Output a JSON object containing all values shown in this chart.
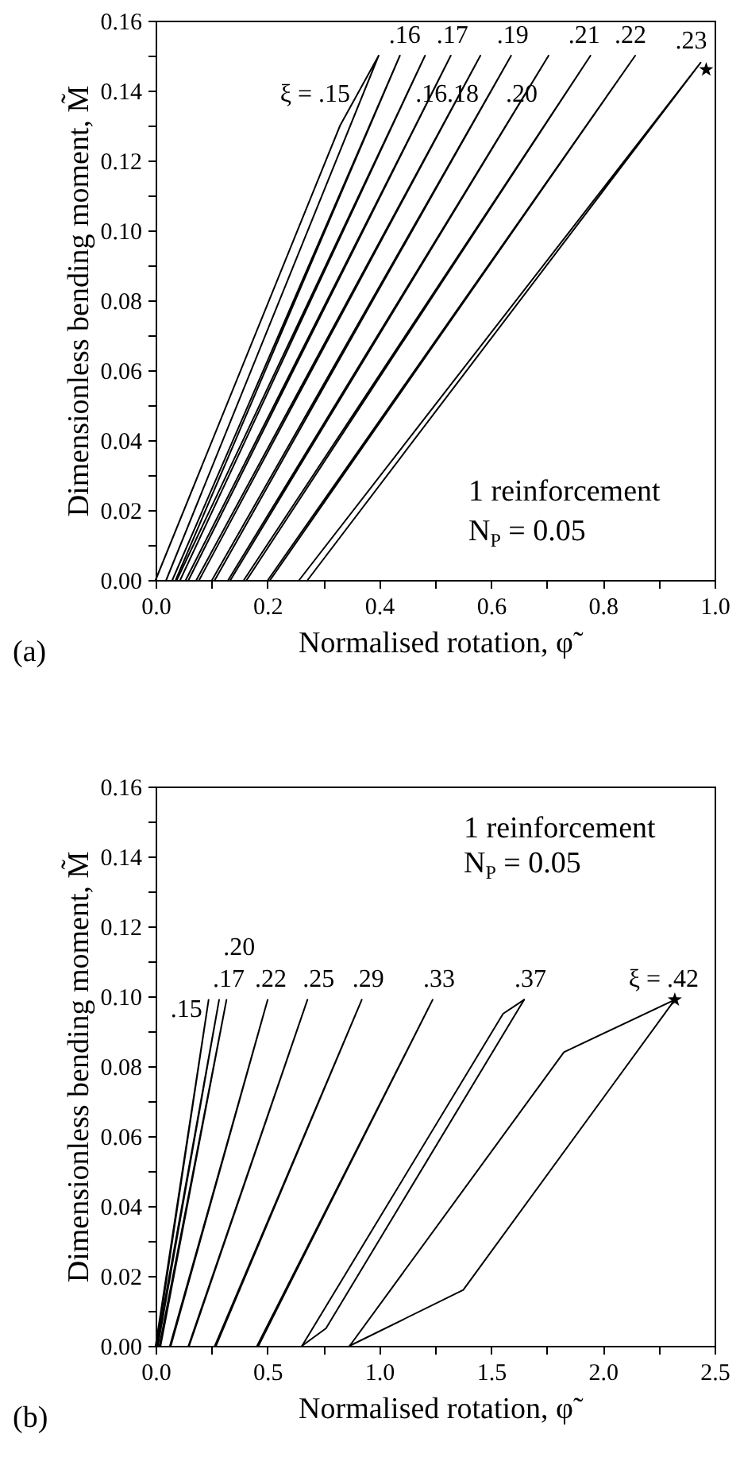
{
  "chart_data": [
    {
      "type": "line",
      "xlabel": "Normalised rotation, φ̃",
      "ylabel": "Dimensionless bending moment, M̃",
      "xlim": [
        0,
        1
      ],
      "ylim": [
        0,
        0.16
      ],
      "grid": false,
      "xticks": [
        {
          "value": 0,
          "label": "0.0"
        },
        {
          "value": 0.1,
          "label": null
        },
        {
          "value": 0.2,
          "label": "0.2"
        },
        {
          "value": 0.3,
          "label": null
        },
        {
          "value": 0.4,
          "label": "0.4"
        },
        {
          "value": 0.5,
          "label": null
        },
        {
          "value": 0.6,
          "label": "0.6"
        },
        {
          "value": 0.7,
          "label": null
        },
        {
          "value": 0.8,
          "label": "0.8"
        },
        {
          "value": 0.9,
          "label": null
        },
        {
          "value": 1,
          "label": "1.0"
        }
      ],
      "yticks": [
        {
          "value": 0,
          "label": "0.00"
        },
        {
          "value": 0.01,
          "label": null
        },
        {
          "value": 0.02,
          "label": "0.02"
        },
        {
          "value": 0.03,
          "label": null
        },
        {
          "value": 0.04,
          "label": "0.04"
        },
        {
          "value": 0.05,
          "label": null
        },
        {
          "value": 0.06,
          "label": "0.06"
        },
        {
          "value": 0.07,
          "label": null
        },
        {
          "value": 0.08,
          "label": "0.08"
        },
        {
          "value": 0.09,
          "label": null
        },
        {
          "value": 0.1,
          "label": "0.10"
        },
        {
          "value": 0.11,
          "label": null
        },
        {
          "value": 0.12,
          "label": "0.12"
        },
        {
          "value": 0.13,
          "label": null
        },
        {
          "value": 0.14,
          "label": "0.14"
        },
        {
          "value": 0.15,
          "label": null
        },
        {
          "value": 0.16,
          "label": "0.16"
        }
      ],
      "series": [
        {
          "name": "ξ = .15",
          "color": "#000000",
          "x": [
            0,
            0.33,
            0.399,
            0.019
          ],
          "values": [
            0,
            0.13,
            0.15,
            0
          ]
        },
        {
          "name": ".16",
          "color": "#000000",
          "x": [
            0.03,
            0.437,
            0.036
          ],
          "values": [
            0,
            0.15,
            0
          ]
        },
        {
          "name": ".16",
          "color": "#000000",
          "x": [
            0.038,
            0.482,
            0.044
          ],
          "values": [
            0,
            0.15,
            0
          ]
        },
        {
          "name": ".17",
          "color": "#000000",
          "x": [
            0.054,
            0.528,
            0.059
          ],
          "values": [
            0,
            0.15,
            0
          ]
        },
        {
          "name": ".18",
          "color": "#000000",
          "x": [
            0.073,
            0.581,
            0.078
          ],
          "values": [
            0,
            0.15,
            0
          ]
        },
        {
          "name": ".19",
          "color": "#000000",
          "x": [
            0.101,
            0.636,
            0.106
          ],
          "values": [
            0,
            0.15,
            0
          ]
        },
        {
          "name": ".20",
          "color": "#000000",
          "x": [
            0.13,
            0.703,
            0.134
          ],
          "values": [
            0,
            0.15,
            0
          ]
        },
        {
          "name": ".21",
          "color": "#000000",
          "x": [
            0.158,
            0.778,
            0.163
          ],
          "values": [
            0,
            0.15,
            0
          ]
        },
        {
          "name": ".22",
          "color": "#000000",
          "x": [
            0.201,
            0.858,
            0.205
          ],
          "values": [
            0,
            0.15,
            0
          ]
        },
        {
          "name": ".23",
          "color": "#000000",
          "x": [
            0.257,
            0.975,
            0.272
          ],
          "values": [
            0,
            0.148,
            0
          ]
        },
        {
          "type": "scatter",
          "marker": "star",
          "color": "#000000",
          "x": [
            0.985
          ],
          "values": [
            0.146
          ]
        }
      ],
      "annotations": [
        "1 reinforcement",
        "N$_{P}$ = 0.05",
        "(a)"
      ]
    },
    {
      "type": "line",
      "xlabel": "Normalised rotation, φ̃",
      "ylabel": "Dimensionless bending moment, M̃",
      "xlim": [
        0,
        2.5
      ],
      "ylim": [
        0,
        0.16
      ],
      "grid": false,
      "xticks": [
        {
          "value": 0,
          "label": "0.0"
        },
        {
          "value": 0.25,
          "label": null
        },
        {
          "value": 0.5,
          "label": "0.5"
        },
        {
          "value": 0.75,
          "label": null
        },
        {
          "value": 1,
          "label": "1.0"
        },
        {
          "value": 1.25,
          "label": null
        },
        {
          "value": 1.5,
          "label": "1.5"
        },
        {
          "value": 1.75,
          "label": null
        },
        {
          "value": 2,
          "label": "2.0"
        },
        {
          "value": 2.25,
          "label": null
        },
        {
          "value": 2.5,
          "label": "2.5"
        }
      ],
      "yticks": [
        {
          "value": 0,
          "label": "0.00"
        },
        {
          "value": 0.01,
          "label": null
        },
        {
          "value": 0.02,
          "label": "0.02"
        },
        {
          "value": 0.03,
          "label": null
        },
        {
          "value": 0.04,
          "label": "0.04"
        },
        {
          "value": 0.05,
          "label": null
        },
        {
          "value": 0.06,
          "label": "0.06"
        },
        {
          "value": 0.07,
          "label": null
        },
        {
          "value": 0.08,
          "label": "0.08"
        },
        {
          "value": 0.09,
          "label": null
        },
        {
          "value": 0.1,
          "label": "0.10"
        },
        {
          "value": 0.11,
          "label": null
        },
        {
          "value": 0.12,
          "label": "0.12"
        },
        {
          "value": 0.13,
          "label": null
        },
        {
          "value": 0.14,
          "label": "0.14"
        },
        {
          "value": 0.15,
          "label": null
        },
        {
          "value": 0.16,
          "label": "0.16"
        }
      ],
      "series": [
        {
          "name": ".15",
          "color": "#000000",
          "x": [
            0,
            0.237,
            0.004
          ],
          "values": [
            0,
            0.099,
            0
          ]
        },
        {
          "name": ".17",
          "color": "#000000",
          "x": [
            0.005,
            0.284,
            0.01
          ],
          "values": [
            0,
            0.099,
            0
          ]
        },
        {
          "name": ".20",
          "color": "#000000",
          "x": [
            0.017,
            0.317,
            0.022
          ],
          "values": [
            0,
            0.099,
            0
          ]
        },
        {
          "name": ".22",
          "color": "#000000",
          "x": [
            0.064,
            0.501,
            0.068
          ],
          "values": [
            0,
            0.099,
            0
          ]
        },
        {
          "name": ".25",
          "color": "#000000",
          "x": [
            0.147,
            0.679,
            0.15
          ],
          "values": [
            0,
            0.099,
            0
          ]
        },
        {
          "name": ".29",
          "color": "#000000",
          "x": [
            0.265,
            0.922,
            0.27
          ],
          "values": [
            0,
            0.099,
            0
          ]
        },
        {
          "name": ".33",
          "color": "#000000",
          "x": [
            0.454,
            1.239,
            0.46
          ],
          "values": [
            0,
            0.099,
            0
          ]
        },
        {
          "name": ".37",
          "color": "#000000",
          "x": [
            0.655,
            1.554,
            1.648
          ],
          "values": [
            0,
            0.095,
            0.099
          ]
        },
        {
          "color": "#000000",
          "x": [
            0.655,
            0.762,
            1.648
          ],
          "values": [
            0,
            0.005,
            0.099
          ]
        },
        {
          "name": "ξ = .42",
          "color": "#000000",
          "x": [
            0.868,
            1.826,
            2.322
          ],
          "values": [
            0,
            0.084,
            0.099
          ]
        },
        {
          "color": "#000000",
          "x": [
            0.868,
            1.376,
            2.322
          ],
          "values": [
            0,
            0.016,
            0.099
          ]
        },
        {
          "type": "scatter",
          "marker": "star",
          "color": "#000000",
          "x": [
            2.322
          ],
          "values": [
            0.099
          ]
        }
      ],
      "annotations": [
        "1 reinforcement",
        "N$_{P}$ = 0.05",
        "(b)"
      ]
    }
  ]
}
